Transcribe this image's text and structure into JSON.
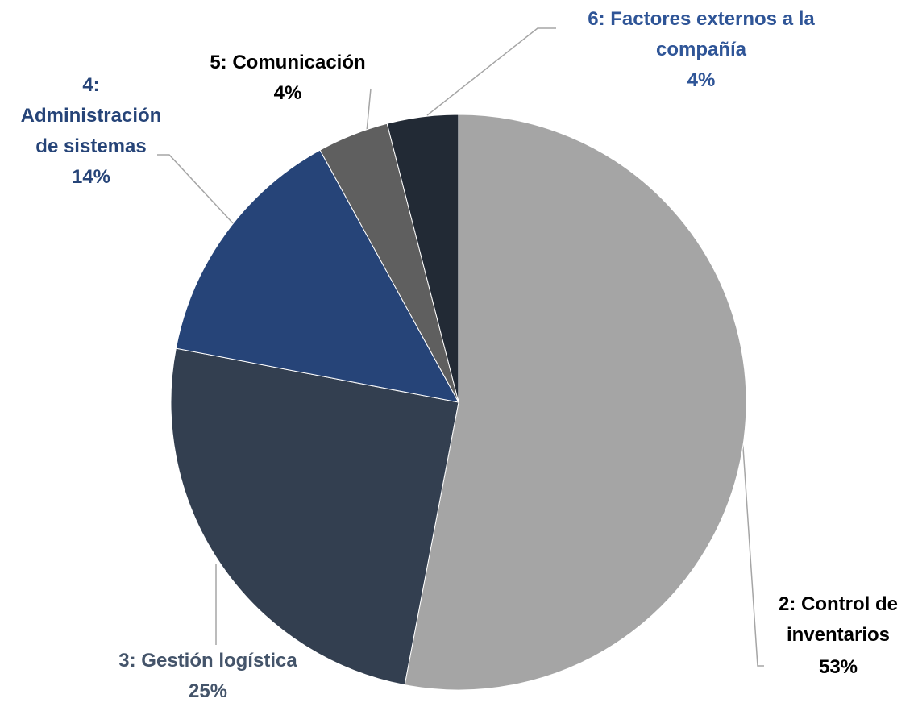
{
  "chart_data": {
    "type": "pie",
    "categories": [
      "2: Control de inventarios",
      "3: Gestión logística",
      "4: Administración de sistemas",
      "5: Comunicación",
      "6: Factores externos a la compañía"
    ],
    "values": [
      53,
      25,
      14,
      4,
      4
    ],
    "value_labels": [
      "53%",
      "25%",
      "14%",
      "4%",
      "4%"
    ],
    "colors": [
      "#a5a5a5",
      "#333f50",
      "#264478",
      "#5f5f5f",
      "#222a35"
    ],
    "label_colors": [
      "#000000",
      "#44546a",
      "#264478",
      "#000000",
      "#2f5597"
    ]
  }
}
